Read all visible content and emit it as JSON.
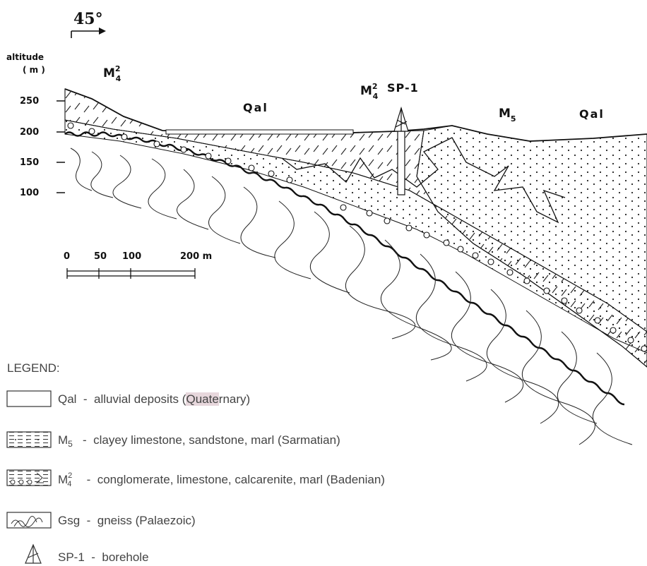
{
  "figure": {
    "orientation": "45°",
    "altitude_label": "altitude",
    "altitude_unit": "( m )",
    "altitude_ticks": [
      "250",
      "200",
      "150",
      "100"
    ],
    "scale_ticks": [
      "0",
      "50",
      "100",
      "200 m"
    ],
    "section_labels": {
      "m4_left": "M",
      "m4_left_sup": "2",
      "m4_left_sub": "4",
      "qal_left": "Qal",
      "m4_mid": "M",
      "m4_mid_sup": "2",
      "m4_mid_sub": "4",
      "borehole": "SP-1",
      "m5": "M",
      "m5_sub": "5",
      "qal_right": "Qal"
    }
  },
  "legend": {
    "title": "LEGEND:",
    "items": [
      {
        "symbol": "Qal",
        "sep": "-",
        "text": "alluvial deposits",
        "age_pre": "(",
        "age_hl": "Quate",
        "age_post": "rnary)"
      },
      {
        "symbol": "M",
        "sub": "5",
        "sep": "-",
        "text": "clayey limestone, sandstone, marl (Sarmatian)"
      },
      {
        "symbol": "M",
        "sup": "2",
        "sub": "4",
        "sep": "-",
        "text": "conglomerate, limestone, calcarenite, marl (Badenian)"
      },
      {
        "symbol": "Gsg",
        "sep": "-",
        "text": "gneiss (Palaezoic)"
      },
      {
        "symbol": "SP-1",
        "sep": "-",
        "text": "borehole"
      }
    ]
  }
}
